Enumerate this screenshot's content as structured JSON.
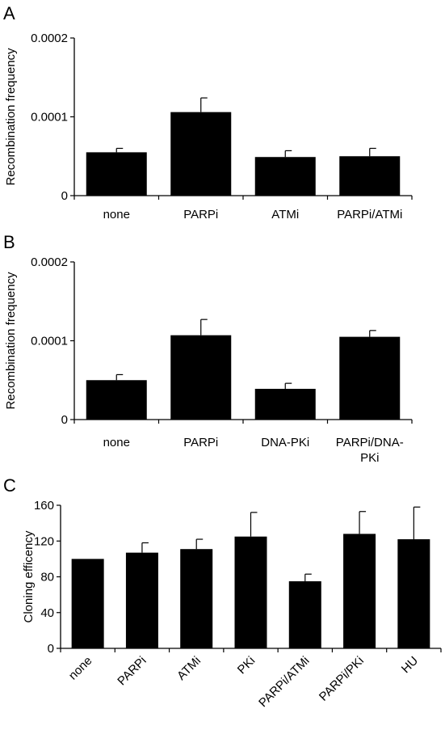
{
  "panels": [
    {
      "letter": "A",
      "chart_data": {
        "type": "bar",
        "categories": [
          "none",
          "PARPi",
          "ATMi",
          "PARPi/ATMi"
        ],
        "values": [
          5.5e-05,
          0.000106,
          4.9e-05,
          5e-05
        ],
        "errors": [
          5e-06,
          1.8e-05,
          8e-06,
          1e-05
        ],
        "ylabel": "Recombination frequency",
        "ylim": [
          0,
          0.0002
        ],
        "yticks": [
          0,
          0.0001,
          0.0002
        ],
        "ytick_labels": [
          "0",
          "0.0001",
          "0.0002"
        ],
        "grid": false,
        "bar_color": "#000000"
      }
    },
    {
      "letter": "B",
      "chart_data": {
        "type": "bar",
        "categories": [
          "none",
          "PARPi",
          "DNA-PKi",
          "PARPi/DNA-PKi"
        ],
        "category_lines": [
          [
            "none"
          ],
          [
            "PARPi"
          ],
          [
            "DNA-PKi"
          ],
          [
            "PARPi/DNA-",
            "PKi"
          ]
        ],
        "values": [
          5e-05,
          0.000107,
          3.9e-05,
          0.000105
        ],
        "errors": [
          7e-06,
          2e-05,
          7e-06,
          8e-06
        ],
        "ylabel": "Recombination frequency",
        "ylim": [
          0,
          0.0002
        ],
        "yticks": [
          0,
          0.0001,
          0.0002
        ],
        "ytick_labels": [
          "0",
          "0.0001",
          "0.0002"
        ],
        "grid": false,
        "bar_color": "#000000"
      }
    },
    {
      "letter": "C",
      "chart_data": {
        "type": "bar",
        "categories": [
          "none",
          "PARPi",
          "ATMi",
          "PKi",
          "PARPi/ATMi",
          "PARPi/PKi",
          "HU"
        ],
        "values": [
          100,
          107,
          111,
          125,
          75,
          128,
          122
        ],
        "errors": [
          0,
          11,
          11,
          27,
          8,
          25,
          36
        ],
        "ylabel": "Cloning efficency",
        "ylim": [
          0,
          160
        ],
        "yticks": [
          0,
          40,
          80,
          120,
          160
        ],
        "ytick_labels": [
          "0",
          "40",
          "80",
          "120",
          "160"
        ],
        "grid": false,
        "bar_color": "#000000"
      }
    }
  ]
}
